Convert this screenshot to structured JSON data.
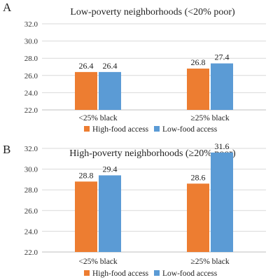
{
  "colors": {
    "high_food_access": "#ED7D31",
    "low_food_access": "#5B9BD5",
    "grid": "#D9D9D9"
  },
  "chart_data": [
    {
      "panel_letter": "A",
      "type": "bar",
      "title": "Low-poverty neighborhoods (<20% poor)",
      "categories": [
        "<25% black",
        "≥25% black"
      ],
      "series": [
        {
          "name": "High-food access",
          "values": [
            26.4,
            26.8
          ],
          "labels": [
            "26.4",
            "26.8"
          ]
        },
        {
          "name": "Low-food access",
          "values": [
            26.4,
            27.4
          ],
          "labels": [
            "26.4",
            "27.4"
          ]
        }
      ],
      "ylim": [
        22.0,
        32.0
      ],
      "yticks": [
        22.0,
        24.0,
        26.0,
        28.0,
        30.0,
        32.0
      ],
      "ytick_labels": [
        "22.0",
        "24.0",
        "26.0",
        "28.0",
        "30.0",
        "32.0"
      ],
      "grid": true,
      "legend": "bottom"
    },
    {
      "panel_letter": "B",
      "type": "bar",
      "title": "High-poverty neighborhoods (≥20% poor)",
      "categories": [
        "<25% black",
        "≥25% black"
      ],
      "series": [
        {
          "name": "High-food access",
          "values": [
            28.8,
            28.6
          ],
          "labels": [
            "28.8",
            "28.6"
          ]
        },
        {
          "name": "Low-food access",
          "values": [
            29.4,
            31.6
          ],
          "labels": [
            "29.4",
            "31.6"
          ]
        }
      ],
      "ylim": [
        22.0,
        32.0
      ],
      "yticks": [
        22.0,
        24.0,
        26.0,
        28.0,
        30.0,
        32.0
      ],
      "ytick_labels": [
        "22.0",
        "24.0",
        "26.0",
        "28.0",
        "30.0",
        "32.0"
      ],
      "grid": true,
      "legend": "bottom"
    }
  ]
}
